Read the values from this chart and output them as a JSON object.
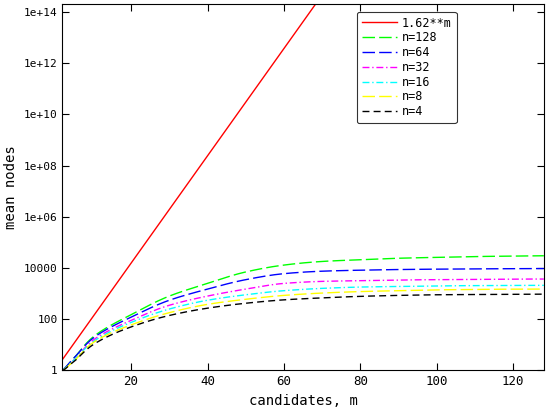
{
  "title": "",
  "xlabel": "candidates, m",
  "ylabel": "mean nodes",
  "xlim": [
    2,
    128
  ],
  "ylim": [
    1,
    200000000000000.0
  ],
  "x_ticks": [
    20,
    40,
    60,
    80,
    100,
    120
  ],
  "n_values": [
    128,
    64,
    32,
    16,
    8,
    4
  ],
  "series_colors": {
    "128": "#00ff00",
    "64": "#0000ff",
    "32": "#ff00ff",
    "16": "#00ffff",
    "8": "#ffff00",
    "4": "#000000"
  },
  "ref_color": "#ff0000",
  "background_color": "#ffffff",
  "curve_params": {
    "128": {
      "a": 3.0,
      "b": 0.55,
      "c": 1.0
    },
    "64": {
      "a": 3.0,
      "b": 0.55,
      "c": 1.0
    },
    "32": {
      "a": 3.0,
      "b": 0.55,
      "c": 1.0
    },
    "16": {
      "a": 3.0,
      "b": 0.55,
      "c": 1.0
    },
    "8": {
      "a": 3.0,
      "b": 0.55,
      "c": 1.0
    },
    "4": {
      "a": 3.0,
      "b": 0.55,
      "c": 1.0
    }
  },
  "end_values": {
    "128": 30000,
    "64": 9000,
    "32": 3500,
    "16": 2000,
    "8": 1500,
    "4": 900
  }
}
